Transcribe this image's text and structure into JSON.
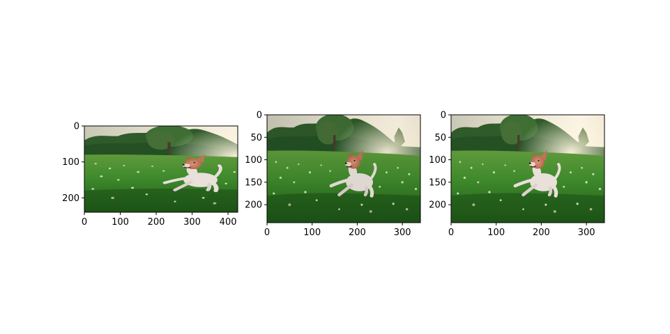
{
  "chart_data": [
    {
      "type": "image",
      "image": "dog-running-on-grass",
      "xlim": [
        0,
        427
      ],
      "ylim": [
        240,
        0
      ],
      "xticks": [
        0,
        100,
        200,
        300,
        400
      ],
      "yticks": [
        0,
        100,
        200
      ],
      "xtick_labels": [
        "0",
        "100",
        "200",
        "300",
        "400"
      ],
      "ytick_labels": [
        "0",
        "100",
        "200"
      ]
    },
    {
      "type": "image",
      "image": "dog-running-on-grass-cropped",
      "xlim": [
        0,
        340
      ],
      "ylim": [
        240,
        0
      ],
      "xticks": [
        0,
        100,
        200,
        300
      ],
      "yticks": [
        0,
        50,
        100,
        150,
        200
      ],
      "xtick_labels": [
        "0",
        "100",
        "200",
        "300"
      ],
      "ytick_labels": [
        "0",
        "50",
        "100",
        "150",
        "200"
      ]
    },
    {
      "type": "image",
      "image": "dog-running-on-grass-cropped",
      "xlim": [
        0,
        340
      ],
      "ylim": [
        240,
        0
      ],
      "xticks": [
        0,
        100,
        200,
        300
      ],
      "yticks": [
        0,
        50,
        100,
        150,
        200
      ],
      "xtick_labels": [
        "0",
        "100",
        "200",
        "300"
      ],
      "ytick_labels": [
        "0",
        "50",
        "100",
        "150",
        "200"
      ]
    }
  ]
}
